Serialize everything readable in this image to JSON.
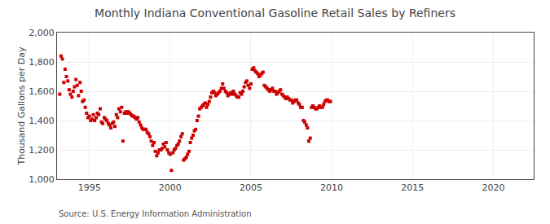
{
  "chart_data": {
    "type": "scatter",
    "title": "Monthly Indiana Conventional Gasoline Retail Sales by Refiners",
    "ylabel": "Thousand Gallons per Day",
    "source": "Source: U.S. Energy Information Administration",
    "color": "#cc0000",
    "marker": "square",
    "grid": true,
    "xlim": [
      1993.0,
      2022.5
    ],
    "ylim": [
      1000,
      2000
    ],
    "xticks": [
      1995,
      2000,
      2005,
      2010,
      2015,
      2020
    ],
    "yticks": [
      {
        "value": 1000,
        "label": "1,000"
      },
      {
        "value": 1200,
        "label": "1,200"
      },
      {
        "value": 1400,
        "label": "1,400"
      },
      {
        "value": 1600,
        "label": "1,600"
      },
      {
        "value": 1800,
        "label": "1,800"
      },
      {
        "value": 2000,
        "label": "2,000"
      }
    ],
    "x": [
      1993.17,
      1993.25,
      1993.33,
      1993.42,
      1993.5,
      1993.58,
      1993.67,
      1993.75,
      1993.83,
      1993.92,
      1994.0,
      1994.08,
      1994.17,
      1994.25,
      1994.33,
      1994.42,
      1994.5,
      1994.58,
      1994.67,
      1994.75,
      1994.83,
      1994.92,
      1995.0,
      1995.08,
      1995.17,
      1995.25,
      1995.33,
      1995.42,
      1995.5,
      1995.58,
      1995.67,
      1995.75,
      1995.83,
      1995.92,
      1996.0,
      1996.08,
      1996.17,
      1996.25,
      1996.33,
      1996.42,
      1996.5,
      1996.58,
      1996.67,
      1996.75,
      1996.83,
      1996.92,
      1997.0,
      1997.08,
      1997.17,
      1997.25,
      1997.33,
      1997.42,
      1997.5,
      1997.58,
      1997.67,
      1997.75,
      1997.83,
      1997.92,
      1998.0,
      1998.08,
      1998.17,
      1998.25,
      1998.33,
      1998.42,
      1998.5,
      1998.58,
      1998.67,
      1998.75,
      1998.83,
      1998.92,
      1999.0,
      1999.08,
      1999.17,
      1999.25,
      1999.33,
      1999.42,
      1999.5,
      1999.58,
      1999.67,
      1999.75,
      1999.83,
      1999.92,
      2000.0,
      2000.08,
      2000.17,
      2000.25,
      2000.33,
      2000.42,
      2000.5,
      2000.58,
      2000.67,
      2000.75,
      2000.83,
      2000.92,
      2001.0,
      2001.08,
      2001.17,
      2001.25,
      2001.33,
      2001.42,
      2001.5,
      2001.58,
      2001.67,
      2001.75,
      2001.83,
      2001.92,
      2002.0,
      2002.08,
      2002.17,
      2002.25,
      2002.33,
      2002.42,
      2002.5,
      2002.58,
      2002.67,
      2002.75,
      2002.83,
      2002.92,
      2003.0,
      2003.08,
      2003.17,
      2003.25,
      2003.33,
      2003.42,
      2003.5,
      2003.58,
      2003.67,
      2003.75,
      2003.83,
      2003.92,
      2004.0,
      2004.08,
      2004.17,
      2004.25,
      2004.33,
      2004.42,
      2004.5,
      2004.58,
      2004.67,
      2004.75,
      2004.83,
      2004.92,
      2005.0,
      2005.08,
      2005.17,
      2005.25,
      2005.33,
      2005.42,
      2005.5,
      2005.58,
      2005.67,
      2005.75,
      2005.83,
      2005.92,
      2006.0,
      2006.08,
      2006.17,
      2006.25,
      2006.33,
      2006.42,
      2006.5,
      2006.58,
      2006.67,
      2006.75,
      2006.83,
      2006.92,
      2007.0,
      2007.08,
      2007.17,
      2007.25,
      2007.33,
      2007.42,
      2007.5,
      2007.58,
      2007.67,
      2007.75,
      2007.83,
      2007.92,
      2008.0,
      2008.08,
      2008.17,
      2008.25,
      2008.33,
      2008.42,
      2008.5,
      2008.58,
      2008.67,
      2008.75,
      2008.83,
      2008.92,
      2009.0,
      2009.08,
      2009.17,
      2009.25,
      2009.33,
      2009.42,
      2009.5,
      2009.58,
      2009.67,
      2009.75,
      2009.83,
      2009.92
    ],
    "values": [
      1580,
      1840,
      1820,
      1660,
      1750,
      1700,
      1670,
      1610,
      1580,
      1560,
      1600,
      1630,
      1680,
      1640,
      1570,
      1660,
      1600,
      1530,
      1540,
      1490,
      1450,
      1420,
      1430,
      1400,
      1410,
      1440,
      1400,
      1420,
      1450,
      1440,
      1480,
      1390,
      1380,
      1420,
      1410,
      1400,
      1380,
      1370,
      1350,
      1380,
      1390,
      1360,
      1440,
      1420,
      1480,
      1460,
      1490,
      1260,
      1450,
      1460,
      1450,
      1460,
      1450,
      1440,
      1430,
      1430,
      1420,
      1410,
      1420,
      1390,
      1370,
      1350,
      1340,
      1340,
      1340,
      1320,
      1310,
      1290,
      1260,
      1230,
      1250,
      1190,
      1160,
      1180,
      1200,
      1200,
      1210,
      1240,
      1220,
      1250,
      1200,
      1180,
      1170,
      1060,
      1180,
      1200,
      1210,
      1230,
      1240,
      1260,
      1290,
      1310,
      1130,
      1140,
      1150,
      1170,
      1190,
      1250,
      1280,
      1300,
      1330,
      1340,
      1400,
      1430,
      1480,
      1490,
      1500,
      1510,
      1520,
      1490,
      1510,
      1530,
      1560,
      1590,
      1600,
      1590,
      1570,
      1580,
      1590,
      1600,
      1620,
      1650,
      1620,
      1600,
      1590,
      1570,
      1580,
      1590,
      1580,
      1600,
      1580,
      1570,
      1560,
      1560,
      1590,
      1580,
      1600,
      1630,
      1660,
      1670,
      1640,
      1620,
      1650,
      1750,
      1760,
      1740,
      1730,
      1720,
      1700,
      1710,
      1720,
      1730,
      1640,
      1630,
      1620,
      1610,
      1600,
      1610,
      1620,
      1600,
      1600,
      1580,
      1590,
      1600,
      1610,
      1580,
      1570,
      1560,
      1550,
      1560,
      1550,
      1540,
      1540,
      1520,
      1530,
      1540,
      1540,
      1520,
      1510,
      1490,
      1490,
      1400,
      1390,
      1370,
      1350,
      1260,
      1280,
      1490,
      1500,
      1490,
      1480,
      1480,
      1490,
      1500,
      1490,
      1490,
      1510,
      1530,
      1540,
      1540,
      1530,
      1530
    ]
  }
}
